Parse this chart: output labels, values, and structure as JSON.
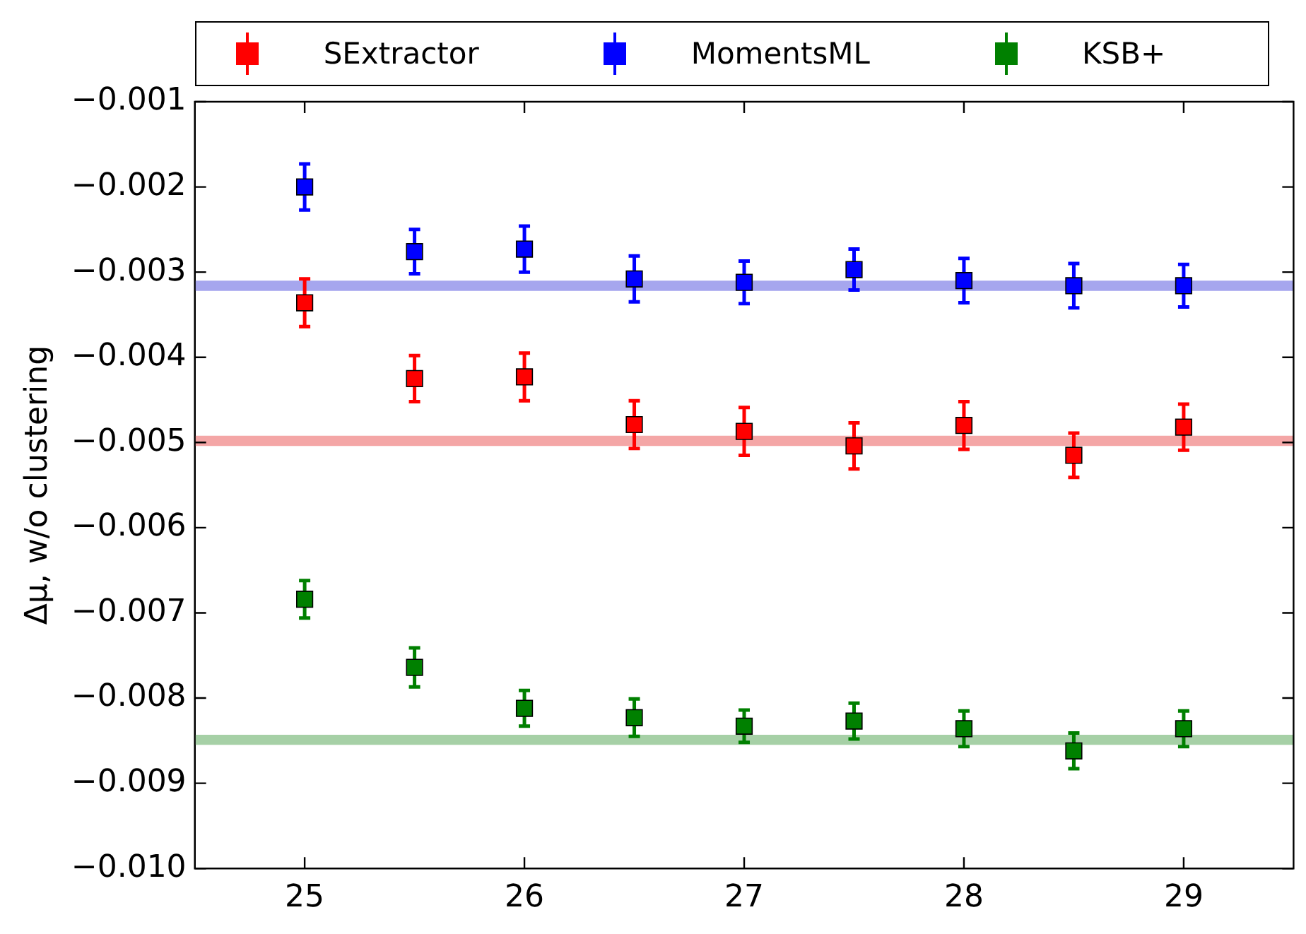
{
  "chart_data": {
    "type": "scatter",
    "ylabel": "Δμ, w/o clustering",
    "x": [
      25,
      25.5,
      26,
      26.5,
      27,
      27.5,
      28,
      28.5,
      29
    ],
    "series": [
      {
        "name": "SExtractor",
        "color": "#ff0000",
        "values": [
          -0.00336,
          -0.00425,
          -0.00423,
          -0.00479,
          -0.00487,
          -0.00504,
          -0.0048,
          -0.00515,
          -0.00482
        ],
        "errors": [
          0.00028,
          0.00027,
          0.00028,
          0.00028,
          0.00028,
          0.00027,
          0.00028,
          0.00026,
          0.00027
        ]
      },
      {
        "name": "MomentsML",
        "color": "#0000ff",
        "values": [
          -0.002,
          -0.00276,
          -0.00273,
          -0.00308,
          -0.00312,
          -0.00297,
          -0.0031,
          -0.00316,
          -0.00316
        ],
        "errors": [
          0.00027,
          0.00026,
          0.00027,
          0.00027,
          0.00025,
          0.00024,
          0.00026,
          0.00026,
          0.00025
        ]
      },
      {
        "name": "KSB+",
        "color": "#008000",
        "values": [
          -0.00684,
          -0.00764,
          -0.00812,
          -0.00823,
          -0.00833,
          -0.00827,
          -0.00836,
          -0.00862,
          -0.00836
        ],
        "errors": [
          0.00022,
          0.00023,
          0.00021,
          0.00022,
          0.00019,
          0.00021,
          0.00021,
          0.00021,
          0.00021
        ]
      }
    ],
    "bands": [
      {
        "axis": "y",
        "from": -0.00504,
        "to": -0.00492,
        "color": "#f4a6a6"
      },
      {
        "axis": "y",
        "from": -0.00322,
        "to": -0.0031,
        "color": "#a6a6ee"
      },
      {
        "axis": "y",
        "from": -0.00855,
        "to": -0.00843,
        "color": "#a6d0a6"
      }
    ],
    "xlim": [
      24.5,
      29.5
    ],
    "xticks": [
      25,
      26,
      27,
      28,
      29
    ],
    "ylim": [
      -0.01,
      -0.001
    ],
    "yticks": [
      {
        "value": -0.01,
        "label": "−0.010"
      },
      {
        "value": -0.009,
        "label": "−0.009"
      },
      {
        "value": -0.008,
        "label": "−0.008"
      },
      {
        "value": -0.007,
        "label": "−0.007"
      },
      {
        "value": -0.006,
        "label": "−0.006"
      },
      {
        "value": -0.005,
        "label": "−0.005"
      },
      {
        "value": -0.004,
        "label": "−0.004"
      },
      {
        "value": -0.003,
        "label": "−0.003"
      },
      {
        "value": -0.002,
        "label": "−0.002"
      },
      {
        "value": -0.001,
        "label": "−0.001"
      }
    ],
    "grid": false,
    "legend": "top",
    "marker": "square"
  }
}
